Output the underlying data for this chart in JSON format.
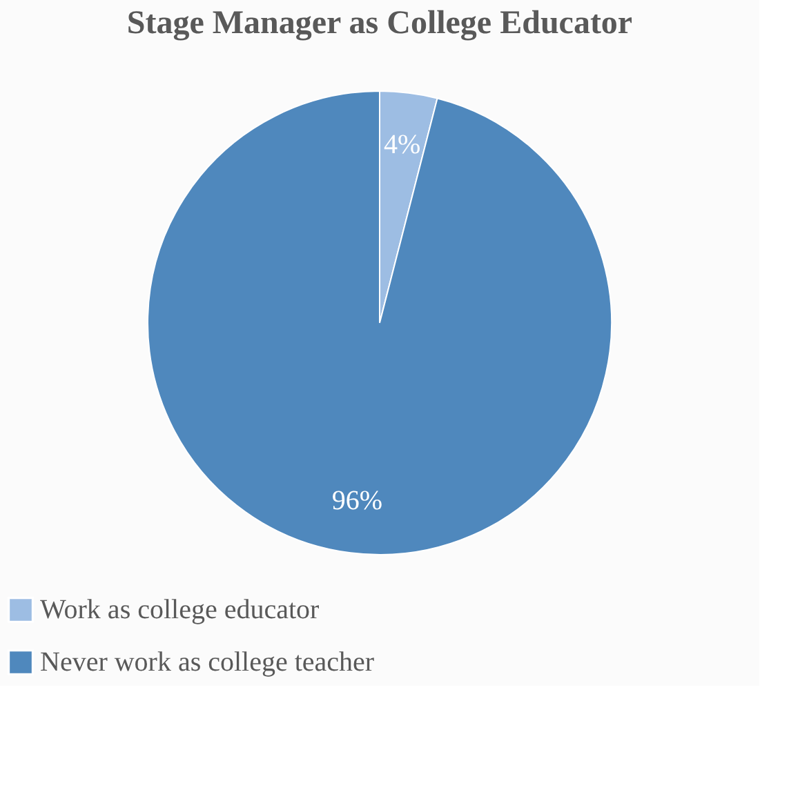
{
  "chart_data": {
    "type": "pie",
    "title": "Stage Manager as College Educator",
    "categories": [
      "Work as college educator",
      "Never work as college teacher"
    ],
    "values": [
      4,
      96
    ],
    "colors": [
      "#9dbde3",
      "#4f88bd"
    ],
    "value_labels": [
      "4%",
      "96%"
    ],
    "legend": "bottom"
  }
}
